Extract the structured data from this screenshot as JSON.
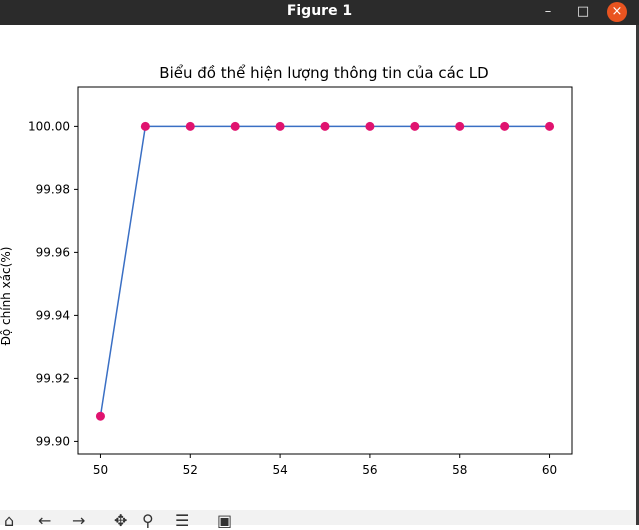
{
  "window": {
    "title": "Figure 1",
    "controls": {
      "minimize": "–",
      "maximize": "□",
      "close": "×"
    }
  },
  "toolbar": {
    "icons": [
      "home-icon",
      "back-icon",
      "forward-icon",
      "pan-icon",
      "zoom-icon",
      "subplots-icon",
      "save-icon"
    ]
  },
  "colors": {
    "line": "#3a6fc4",
    "marker": "#e0136f",
    "titlebar": "#2b2b2b",
    "close_button": "#e95420"
  },
  "chart_data": {
    "type": "line",
    "title": "Biểu đồ thể hiện lượng thông tin của các LD",
    "xlabel": "",
    "ylabel": "Độ chính xác(%)",
    "x": [
      50,
      51,
      52,
      53,
      54,
      55,
      56,
      57,
      58,
      59,
      60
    ],
    "series": [
      {
        "values": [
          99.908,
          100.0,
          100.0,
          100.0,
          100.0,
          100.0,
          100.0,
          100.0,
          100.0,
          100.0,
          100.0
        ]
      }
    ],
    "xticks": [
      "50",
      "52",
      "54",
      "56",
      "58",
      "60"
    ],
    "yticks": [
      "99.90",
      "99.92",
      "99.94",
      "99.96",
      "99.98",
      "100.00"
    ],
    "xlim": [
      49.5,
      60.5
    ],
    "ylim": [
      99.896,
      100.0125
    ],
    "grid": false,
    "markers": true
  }
}
